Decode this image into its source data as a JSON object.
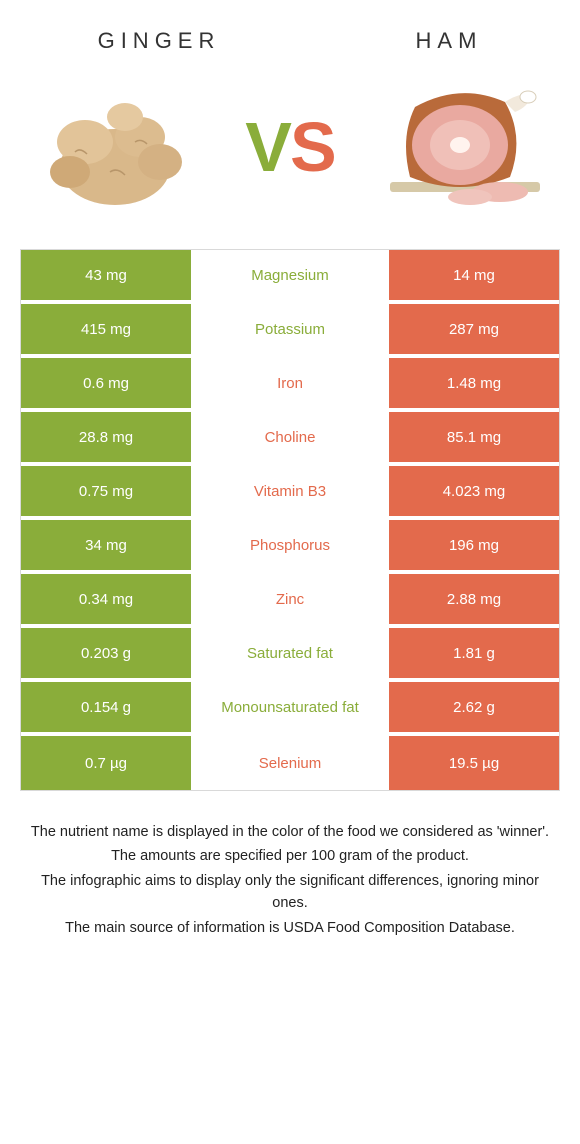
{
  "colors": {
    "green": "#8aad3a",
    "orange": "#e36a4c",
    "white": "#ffffff",
    "border": "#d9d9d9",
    "text": "#333333"
  },
  "header": {
    "left_title": "Ginger",
    "right_title": "Ham",
    "vs_v": "V",
    "vs_s": "S"
  },
  "rows": [
    {
      "left": "43 mg",
      "label": "Magnesium",
      "right": "14 mg",
      "winner": "green"
    },
    {
      "left": "415 mg",
      "label": "Potassium",
      "right": "287 mg",
      "winner": "green"
    },
    {
      "left": "0.6 mg",
      "label": "Iron",
      "right": "1.48 mg",
      "winner": "orange"
    },
    {
      "left": "28.8 mg",
      "label": "Choline",
      "right": "85.1 mg",
      "winner": "orange"
    },
    {
      "left": "0.75 mg",
      "label": "Vitamin B3",
      "right": "4.023 mg",
      "winner": "orange"
    },
    {
      "left": "34 mg",
      "label": "Phosphorus",
      "right": "196 mg",
      "winner": "orange"
    },
    {
      "left": "0.34 mg",
      "label": "Zinc",
      "right": "2.88 mg",
      "winner": "orange"
    },
    {
      "left": "0.203 g",
      "label": "Saturated fat",
      "right": "1.81 g",
      "winner": "green"
    },
    {
      "left": "0.154 g",
      "label": "Monounsaturated fat",
      "right": "2.62 g",
      "winner": "green"
    },
    {
      "left": "0.7 µg",
      "label": "Selenium",
      "right": "19.5 µg",
      "winner": "orange"
    }
  ],
  "footer": {
    "line1": "The nutrient name is displayed in the color of the food we considered as 'winner'.",
    "line2": "The amounts are specified per 100 gram of the product.",
    "line3": "The infographic aims to display only the significant differences, ignoring minor ones.",
    "line4": "The main source of information is USDA Food Composition Database."
  }
}
